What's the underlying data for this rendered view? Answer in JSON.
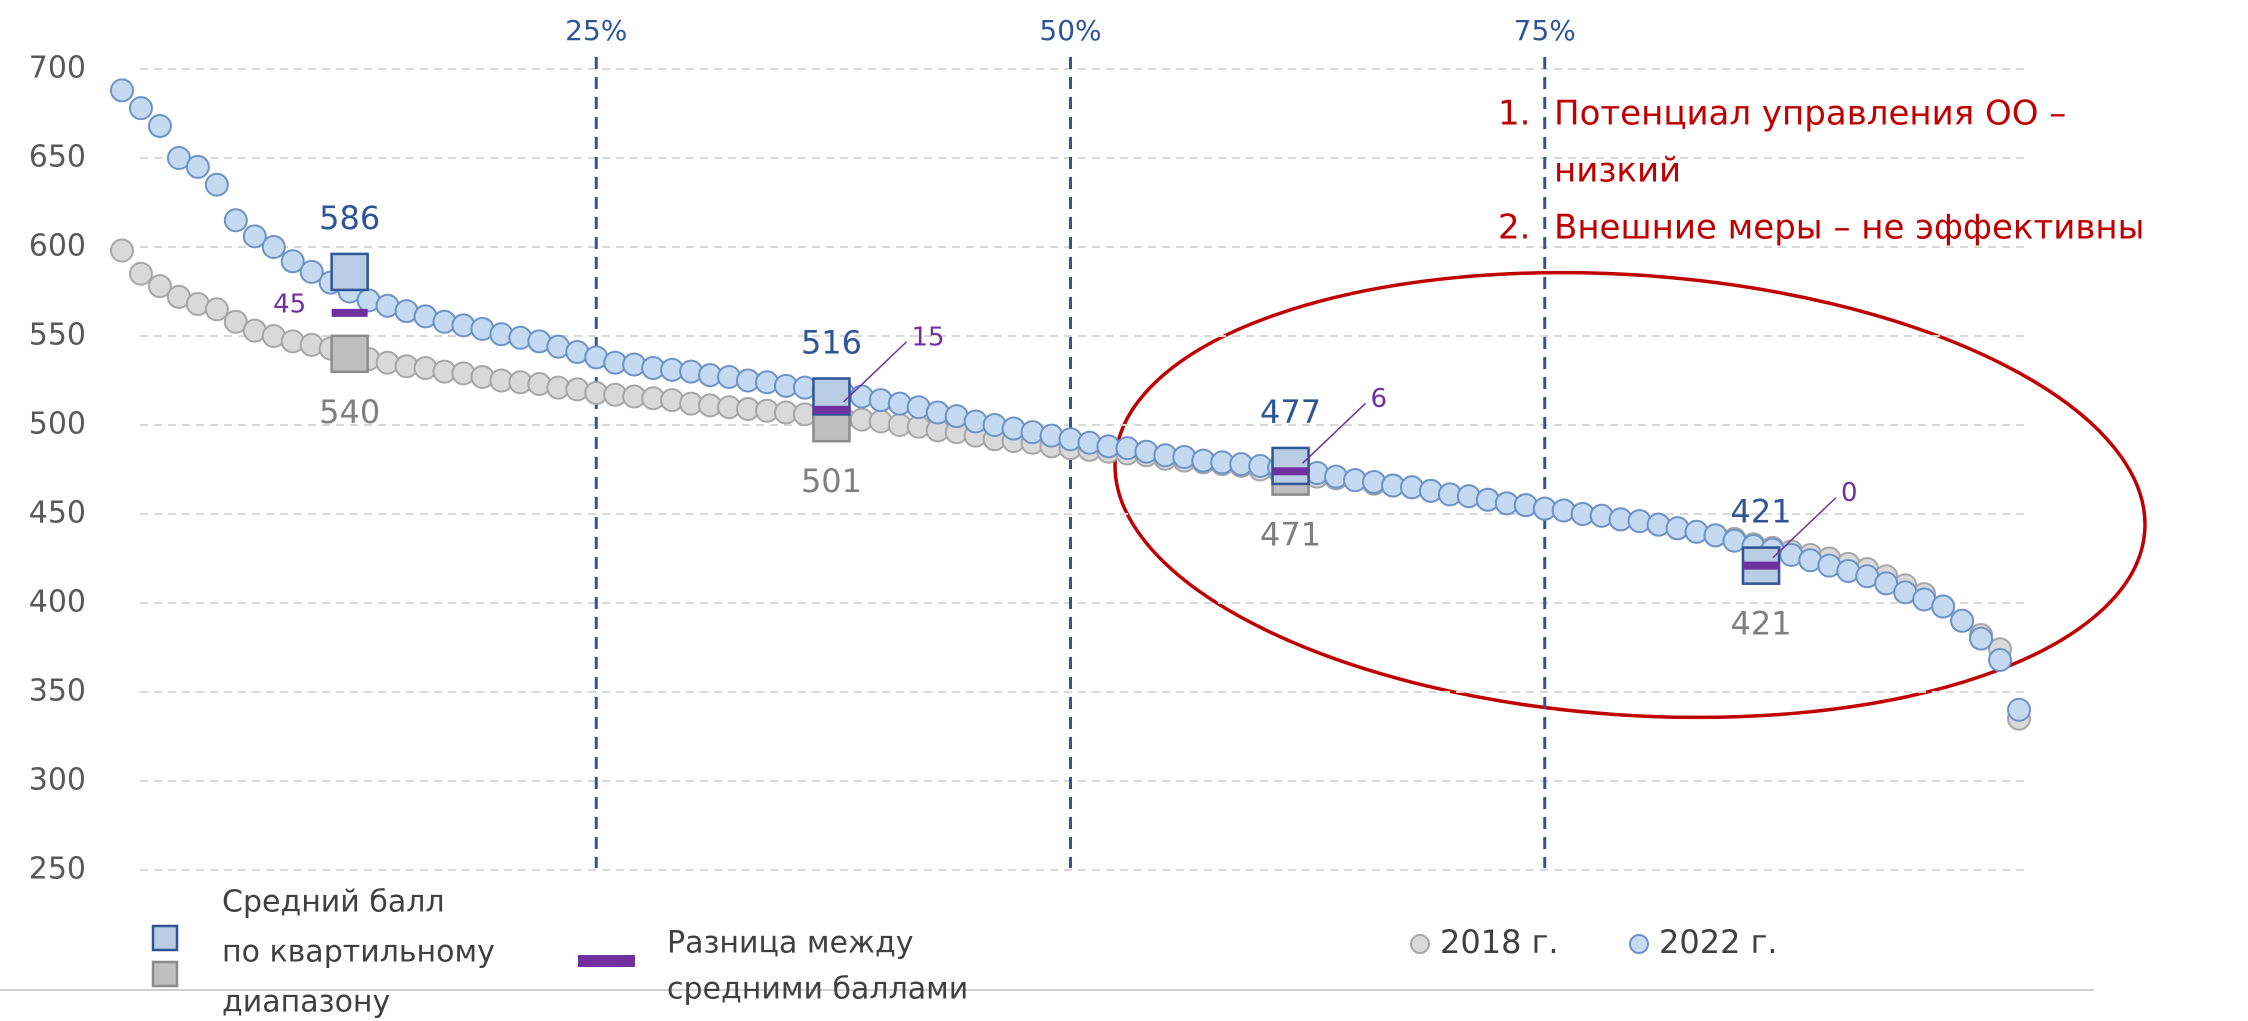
{
  "chart_data": {
    "type": "scatter",
    "ylim": [
      250,
      700
    ],
    "yticks": [
      250,
      300,
      350,
      400,
      450,
      500,
      550,
      600,
      650,
      700
    ],
    "xlim": [
      0,
      100
    ],
    "grid": true,
    "quartile_lines": [
      {
        "value": 25,
        "label": "25%"
      },
      {
        "value": 50,
        "label": "50%"
      },
      {
        "value": 75,
        "label": "75%"
      }
    ],
    "x": [
      0,
      1,
      2,
      3,
      4,
      5,
      6,
      7,
      8,
      9,
      10,
      11,
      12,
      13,
      14,
      15,
      16,
      17,
      18,
      19,
      20,
      21,
      22,
      23,
      24,
      25,
      26,
      27,
      28,
      29,
      30,
      31,
      32,
      33,
      34,
      35,
      36,
      37,
      38,
      39,
      40,
      41,
      42,
      43,
      44,
      45,
      46,
      47,
      48,
      49,
      50,
      51,
      52,
      53,
      54,
      55,
      56,
      57,
      58,
      59,
      60,
      61,
      62,
      63,
      64,
      65,
      66,
      67,
      68,
      69,
      70,
      71,
      72,
      73,
      74,
      75,
      76,
      77,
      78,
      79,
      80,
      81,
      82,
      83,
      84,
      85,
      86,
      87,
      88,
      89,
      90,
      91,
      92,
      93,
      94,
      95,
      96,
      97,
      98,
      99,
      100
    ],
    "series": [
      {
        "name": "2018 г.",
        "color": "#d9d9d9",
        "stroke": "#a6a6a6",
        "values": [
          598,
          585,
          578,
          572,
          568,
          565,
          558,
          553,
          550,
          547,
          545,
          543,
          540,
          537,
          535,
          533,
          532,
          530,
          529,
          527,
          525,
          524,
          523,
          521,
          520,
          518,
          517,
          516,
          515,
          514,
          512,
          511,
          510,
          509,
          508,
          507,
          506,
          505,
          504,
          503,
          502,
          500,
          499,
          497,
          496,
          494,
          492,
          491,
          490,
          488,
          487,
          486,
          485,
          484,
          483,
          481,
          480,
          479,
          478,
          477,
          475,
          474,
          473,
          471,
          470,
          469,
          467,
          466,
          465,
          463,
          461,
          460,
          458,
          456,
          455,
          453,
          452,
          450,
          449,
          447,
          446,
          444,
          442,
          440,
          438,
          436,
          433,
          431,
          429,
          427,
          425,
          422,
          419,
          415,
          410,
          405,
          398,
          390,
          382,
          374,
          335
        ]
      },
      {
        "name": "2022 г.",
        "color": "#c5d9f1",
        "stroke": "#6b93c8",
        "values": [
          688,
          678,
          668,
          650,
          645,
          635,
          615,
          606,
          600,
          592,
          586,
          580,
          575,
          570,
          567,
          564,
          561,
          558,
          556,
          554,
          551,
          549,
          547,
          544,
          541,
          538,
          535,
          534,
          532,
          531,
          530,
          528,
          527,
          525,
          524,
          522,
          521,
          520,
          518,
          516,
          514,
          512,
          510,
          507,
          505,
          502,
          500,
          498,
          496,
          494,
          492,
          490,
          488,
          487,
          485,
          483,
          482,
          480,
          479,
          478,
          477,
          476,
          475,
          473,
          471,
          469,
          468,
          466,
          465,
          463,
          461,
          460,
          458,
          456,
          455,
          453,
          452,
          450,
          449,
          447,
          446,
          444,
          442,
          440,
          438,
          435,
          432,
          430,
          427,
          424,
          421,
          418,
          415,
          411,
          406,
          402,
          398,
          390,
          380,
          368,
          340
        ]
      }
    ],
    "quartile_means": {
      "x": [
        12,
        37.4,
        61.6,
        86.4
      ],
      "2022": [
        586,
        516,
        477,
        421
      ],
      "2018": [
        540,
        501,
        471,
        421
      ],
      "difference": [
        45,
        15,
        6,
        0
      ]
    },
    "legend": {
      "mean_label": [
        "Средний балл",
        "по квартильному",
        "диапазону"
      ],
      "difference_label": [
        "Разница между",
        "средними баллами"
      ]
    },
    "annotations": [
      {
        "number": "1.",
        "lines": [
          "Потенциал управления ОО –",
          "низкий"
        ]
      },
      {
        "number": "2.",
        "lines": [
          "Внешние меры – не эффективны"
        ]
      }
    ]
  }
}
